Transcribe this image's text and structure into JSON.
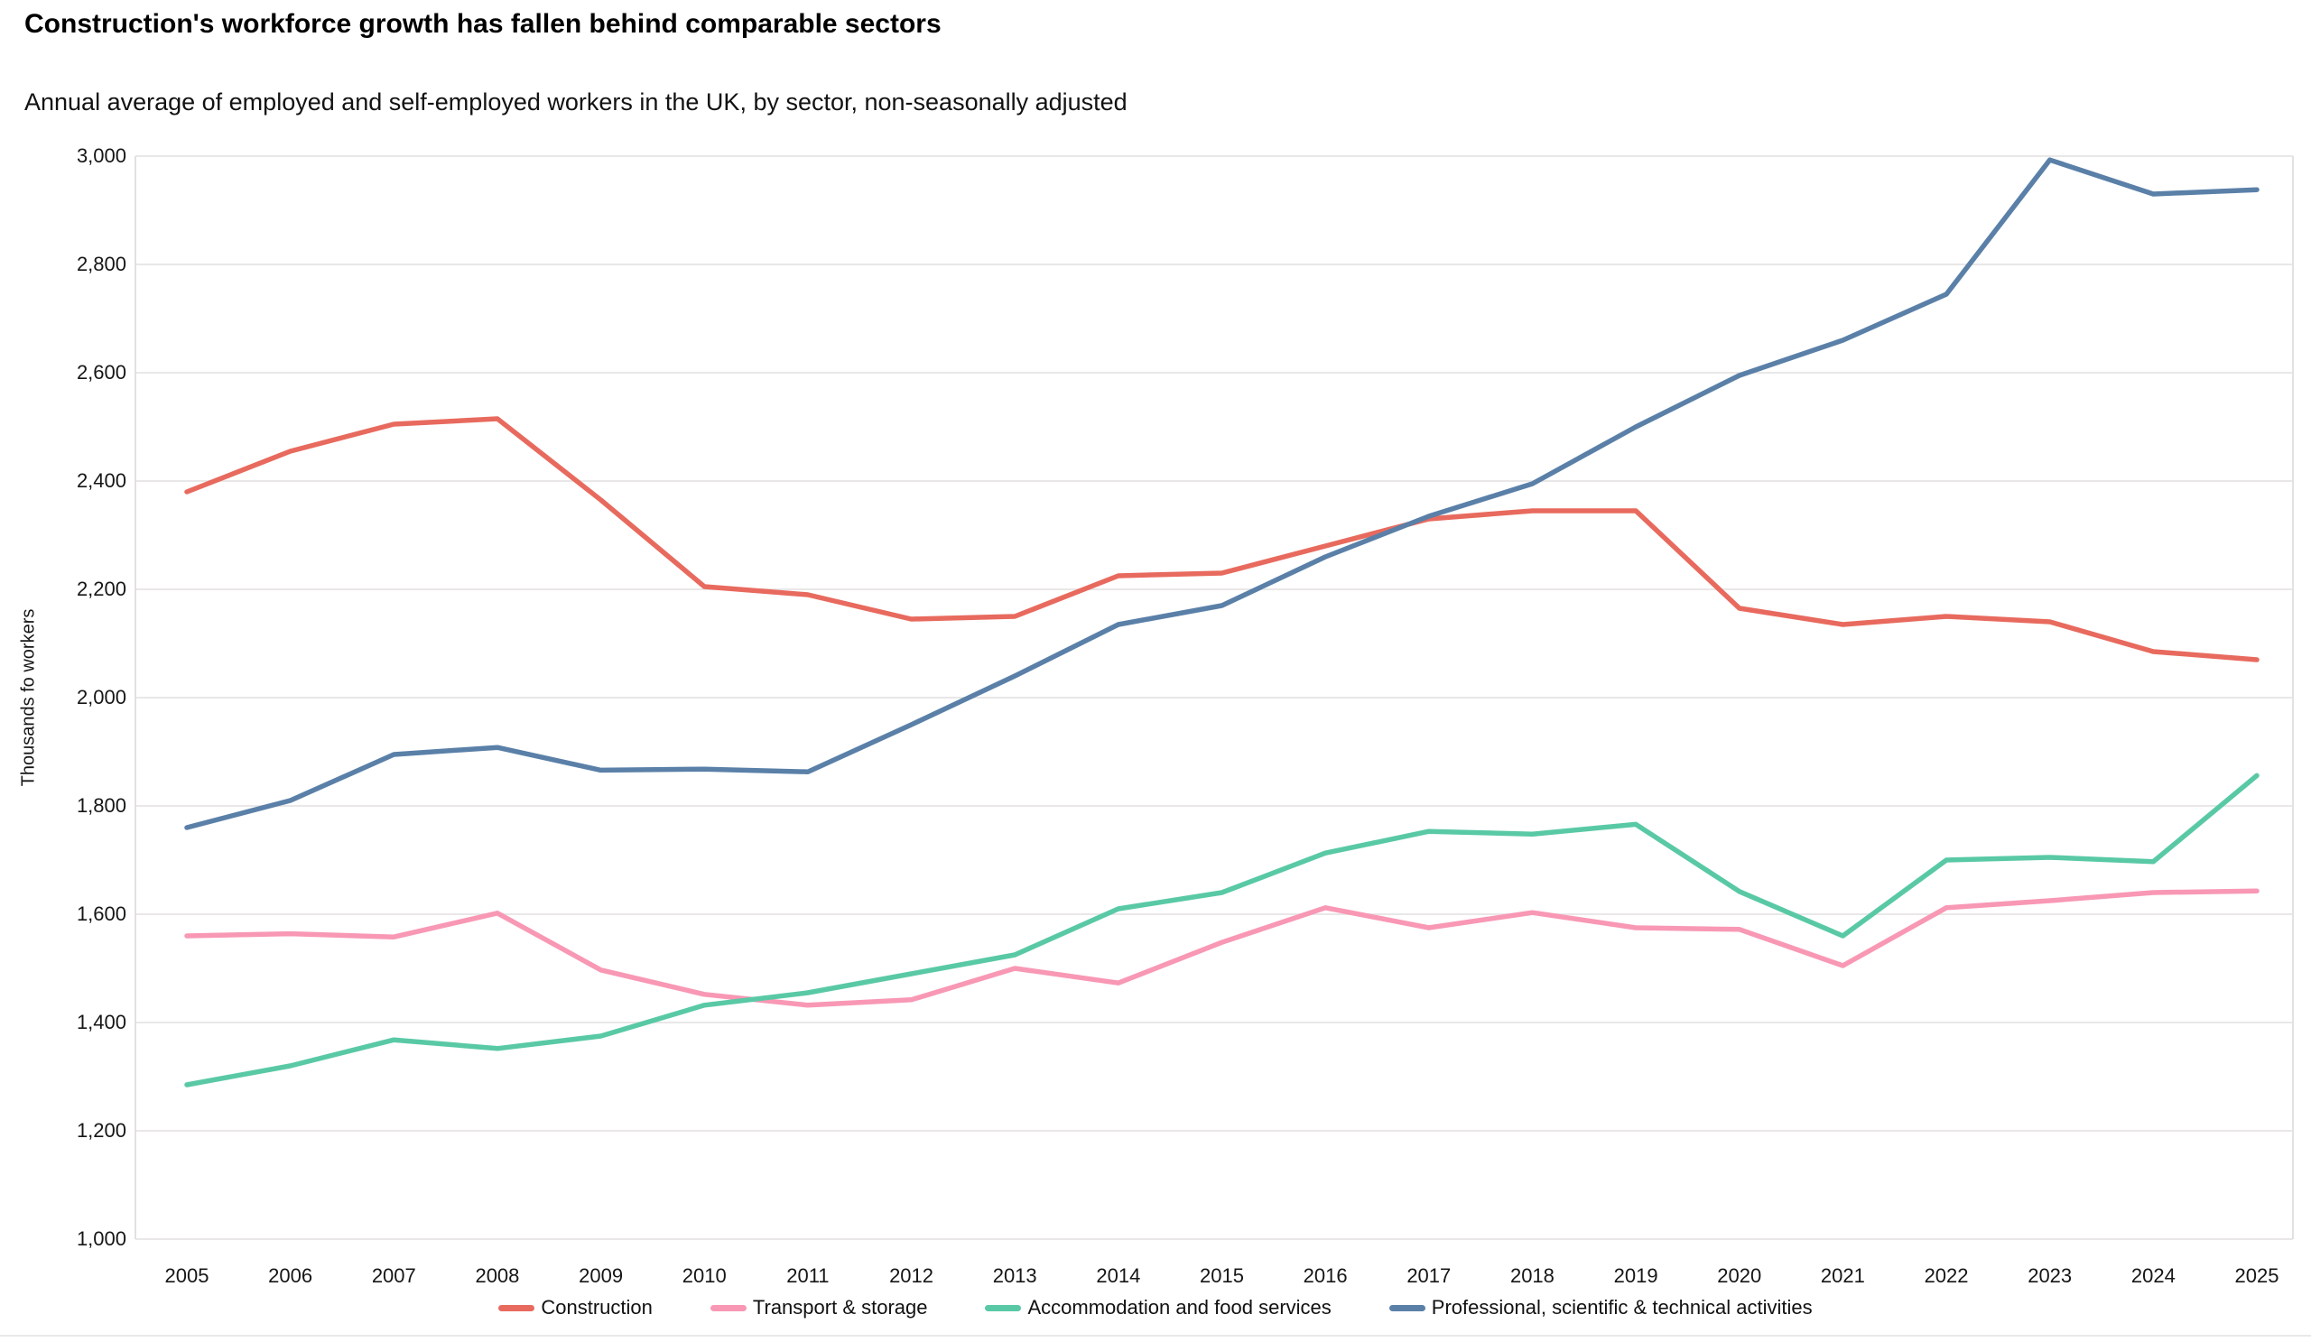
{
  "header": {
    "title": "Construction's workforce growth has fallen behind comparable sectors",
    "subtitle": "Annual average of employed and self-employed workers in the UK, by sector, non-seasonally adjusted"
  },
  "chart_data": {
    "type": "line",
    "title": "Construction's workforce growth has fallen behind comparable sectors",
    "subtitle": "Annual average of employed and self-employed workers in the UK, by sector, non-seasonally adjusted",
    "xlabel": "",
    "ylabel": "Thousands fo workers",
    "x": [
      2005,
      2006,
      2007,
      2008,
      2009,
      2010,
      2011,
      2012,
      2013,
      2014,
      2015,
      2016,
      2017,
      2018,
      2019,
      2020,
      2021,
      2022,
      2023,
      2024,
      2025
    ],
    "xtick_labels": [
      "2005",
      "2006",
      "2007",
      "2008",
      "2009",
      "2010",
      "2011",
      "2012",
      "2013",
      "2014",
      "2015",
      "2016",
      "2017",
      "2018",
      "2019",
      "2020",
      "2021",
      "2022",
      "2023",
      "2024",
      "2025"
    ],
    "ylim": [
      1000,
      3000
    ],
    "ytick_step": 200,
    "ytick_labels": [
      "1,000",
      "1,200",
      "1,400",
      "1,600",
      "1,800",
      "2,000",
      "2,200",
      "2,400",
      "2,600",
      "2,800",
      "3,000"
    ],
    "grid": true,
    "legend_position": "bottom",
    "colors": {
      "grid": "#e9e7e7",
      "border": "#e3e1e1",
      "text": "#161616"
    },
    "series": [
      {
        "name": "Construction",
        "color": "#E86A5E",
        "values": [
          2380,
          2455,
          2505,
          2515,
          2365,
          2205,
          2190,
          2145,
          2150,
          2225,
          2230,
          2280,
          2330,
          2345,
          2345,
          2165,
          2135,
          2150,
          2140,
          2085,
          2070
        ]
      },
      {
        "name": "Transport & storage",
        "color": "#F898B5",
        "values": [
          1560,
          1564,
          1558,
          1602,
          1497,
          1452,
          1432,
          1442,
          1500,
          1473,
          1548,
          1612,
          1575,
          1603,
          1575,
          1572,
          1505,
          1612,
          1625,
          1640,
          1643
        ]
      },
      {
        "name": "Accommodation and food services",
        "color": "#59C9A5",
        "values": [
          1285,
          1320,
          1368,
          1352,
          1375,
          1432,
          1455,
          1490,
          1525,
          1610,
          1640,
          1713,
          1753,
          1748,
          1766,
          1642,
          1560,
          1700,
          1705,
          1697,
          1856
        ]
      },
      {
        "name": "Professional, scientific & technical activities",
        "color": "#5A80A8",
        "values": [
          1760,
          1810,
          1895,
          1908,
          1866,
          1868,
          1863,
          1950,
          2040,
          2135,
          2170,
          2260,
          2335,
          2395,
          2500,
          2595,
          2660,
          2745,
          2993,
          2930,
          2938
        ]
      }
    ]
  }
}
